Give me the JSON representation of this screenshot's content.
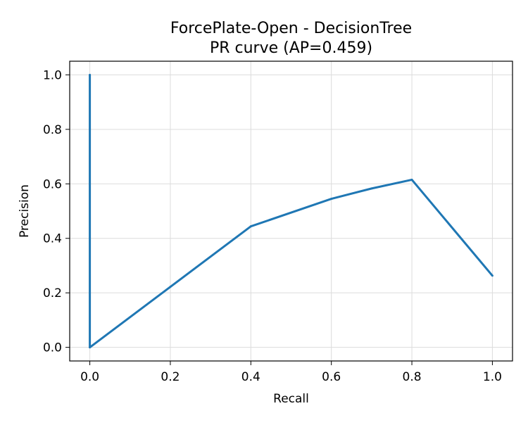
{
  "chart_data": {
    "type": "line",
    "title_line1": "ForcePlate-Open - DecisionTree",
    "title_line2": "PR curve (AP=0.459)",
    "xlabel": "Recall",
    "ylabel": "Precision",
    "xlim": [
      -0.05,
      1.05
    ],
    "ylim": [
      -0.05,
      1.05
    ],
    "xticks": [
      0.0,
      0.2,
      0.4,
      0.6,
      0.8,
      1.0
    ],
    "yticks": [
      0.0,
      0.2,
      0.4,
      0.6,
      0.8,
      1.0
    ],
    "xtick_labels": [
      "0.0",
      "0.2",
      "0.4",
      "0.6",
      "0.8",
      "1.0"
    ],
    "ytick_labels": [
      "0.0",
      "0.2",
      "0.4",
      "0.6",
      "0.8",
      "1.0"
    ],
    "grid": true,
    "series": [
      {
        "name": "PR curve",
        "color": "#1f77b4",
        "x": [
          0.0,
          0.0,
          0.2,
          0.4,
          0.6,
          0.7,
          0.8,
          1.0
        ],
        "y": [
          1.0,
          0.0,
          0.222,
          0.444,
          0.545,
          0.583,
          0.615,
          0.263
        ]
      }
    ]
  }
}
